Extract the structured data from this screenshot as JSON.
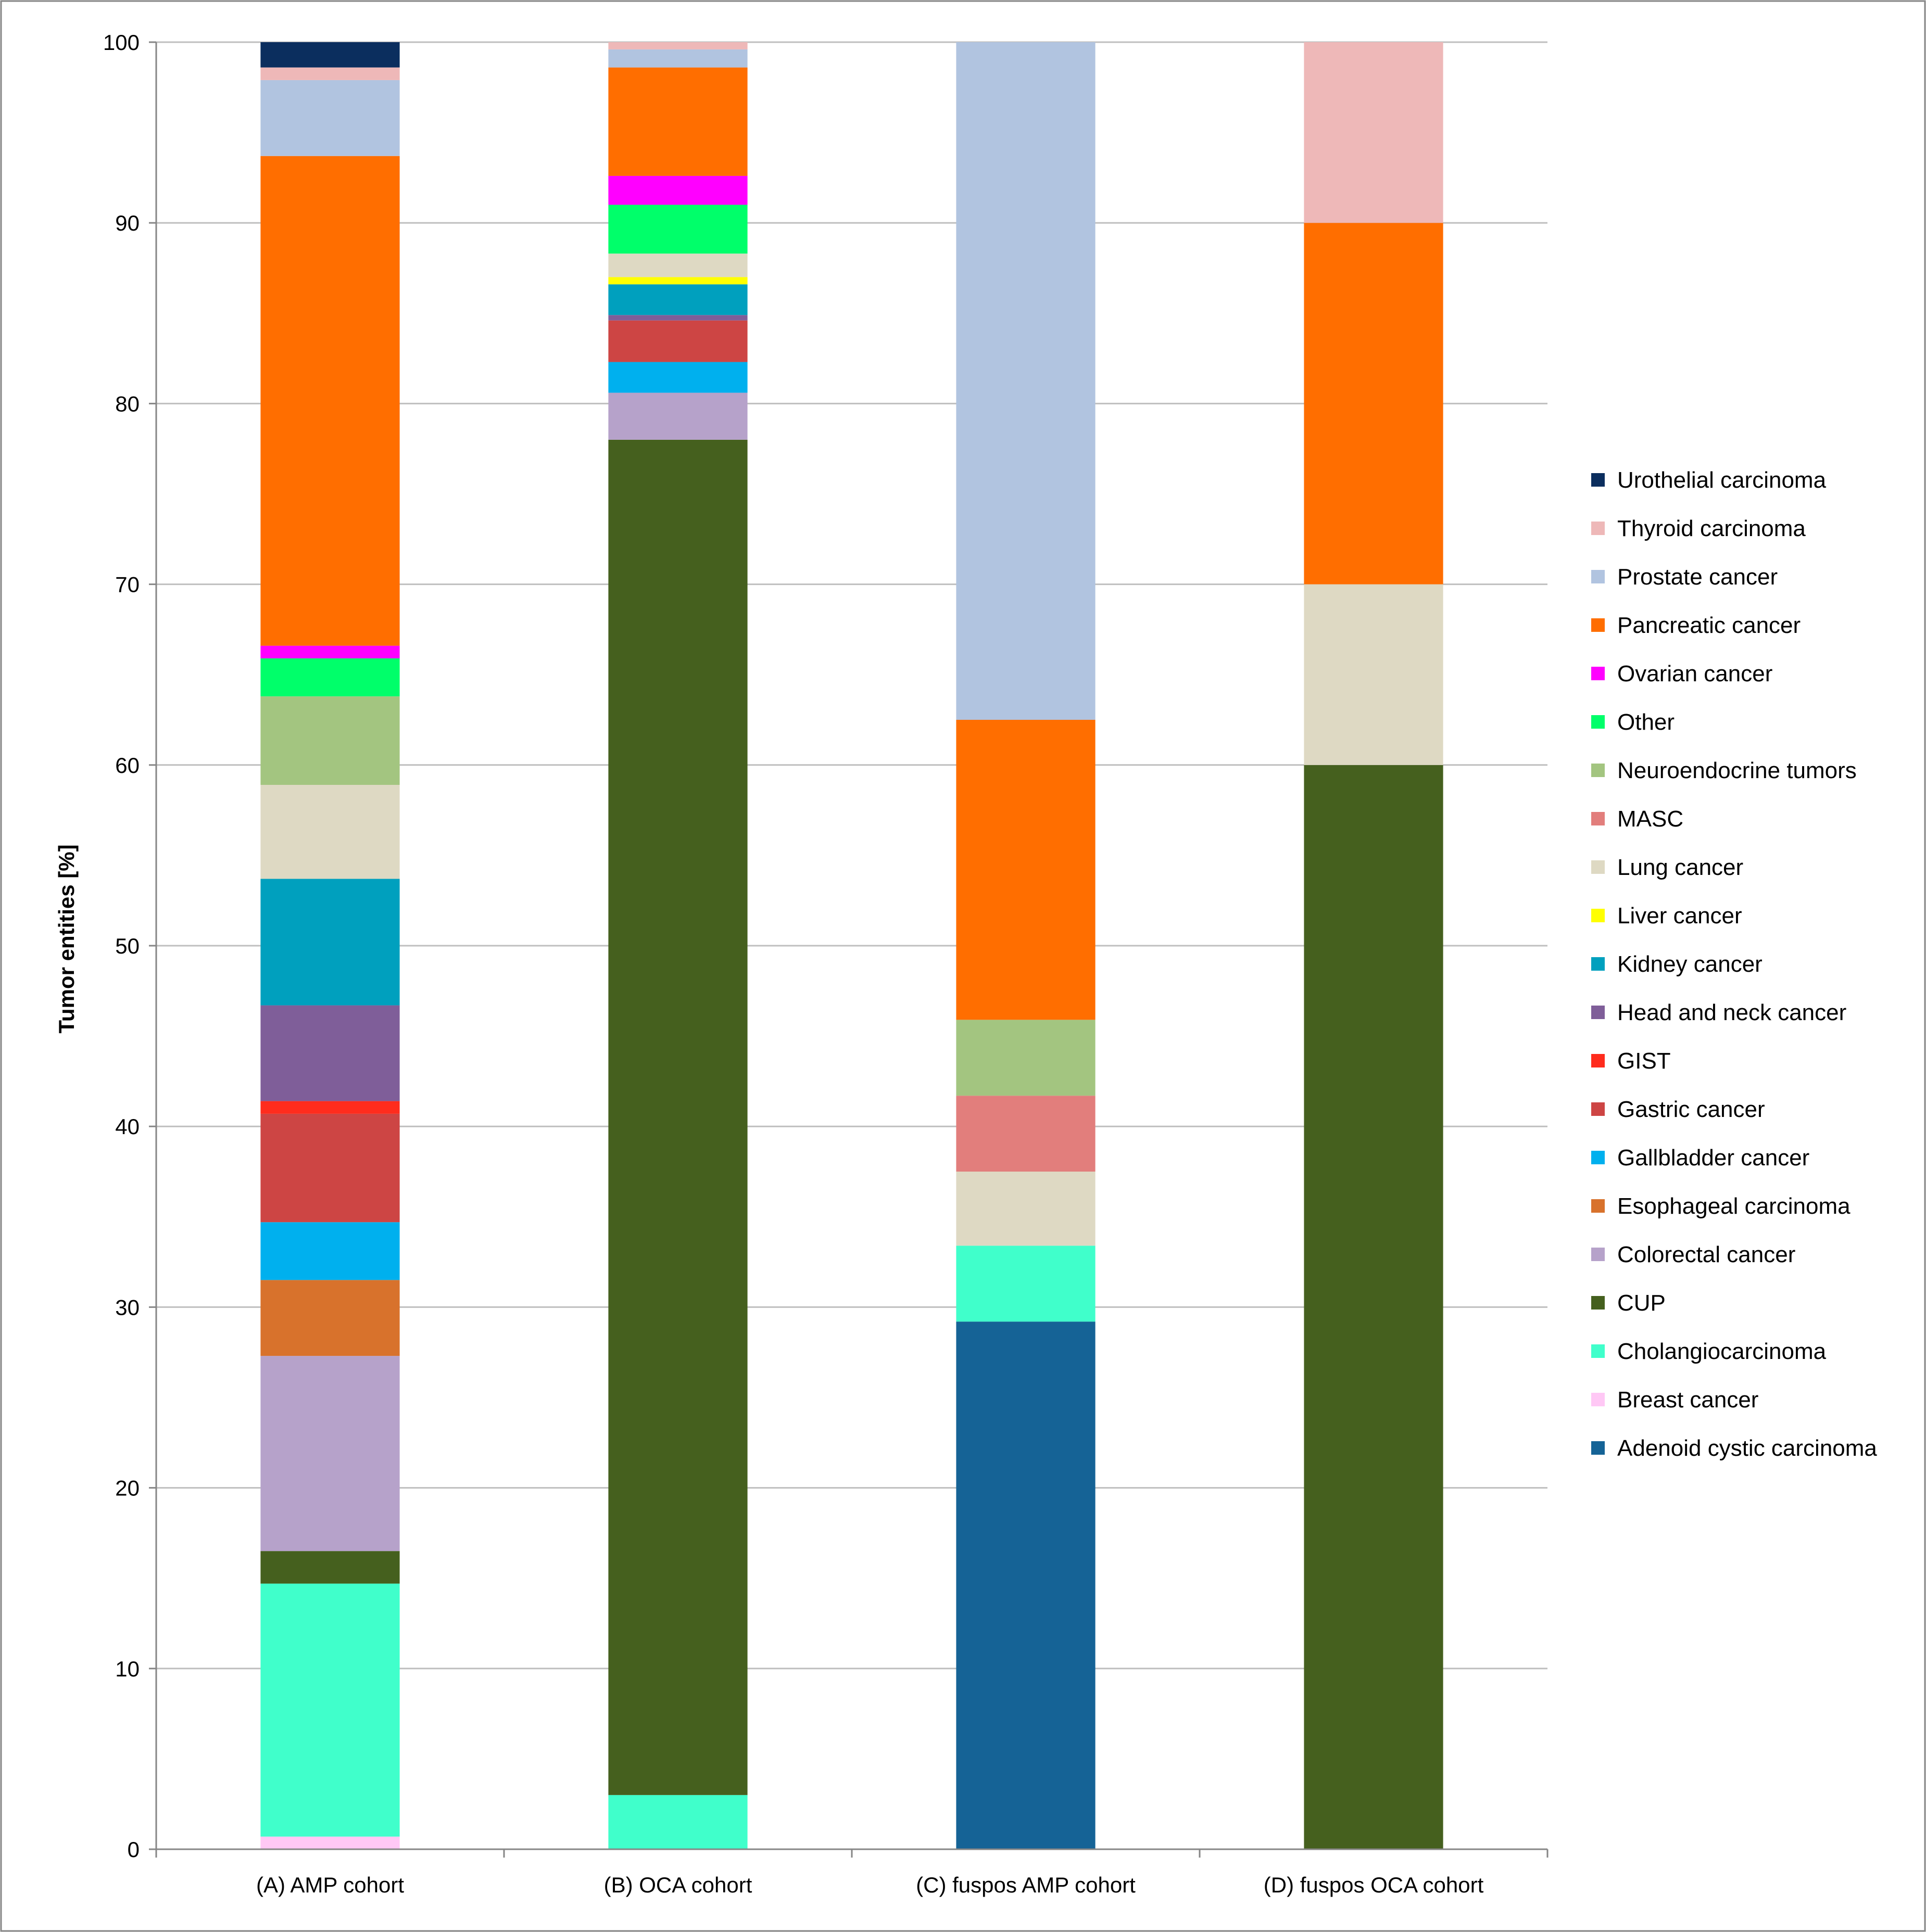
{
  "chart_data": {
    "type": "bar",
    "stacked": true,
    "title": "",
    "xlabel": "",
    "ylabel": "Tumor entities [%]",
    "ylim": [
      0,
      100
    ],
    "yticks": [
      0,
      10,
      20,
      30,
      40,
      50,
      60,
      70,
      80,
      90,
      100
    ],
    "grid": true,
    "legend_position": "right",
    "categories": [
      "(A) AMP cohort",
      "(B) OCA cohort",
      "(C) fuspos AMP cohort",
      "(D) fuspos OCA cohort"
    ],
    "series": [
      {
        "name": "Adenoid cystic carcinoma",
        "color": "#156396",
        "values": [
          0,
          0,
          29.2,
          0
        ]
      },
      {
        "name": "Breast cancer",
        "color": "#FFC8F5",
        "values": [
          0.7,
          0,
          0,
          0
        ]
      },
      {
        "name": "Cholangiocarcinoma",
        "color": "#40FFCB",
        "values": [
          14.0,
          3.0,
          4.2,
          0
        ]
      },
      {
        "name": "CUP",
        "color": "#45601E",
        "values": [
          1.8,
          75.0,
          0,
          60.0
        ]
      },
      {
        "name": "Colorectal cancer",
        "color": "#B6A2CA",
        "values": [
          10.8,
          2.6,
          0,
          0
        ]
      },
      {
        "name": "Esophageal carcinoma",
        "color": "#D8722C",
        "values": [
          4.2,
          0,
          0,
          0
        ]
      },
      {
        "name": "Gallbladder cancer",
        "color": "#00B0EE",
        "values": [
          3.2,
          1.7,
          0,
          0
        ]
      },
      {
        "name": "Gastric cancer",
        "color": "#CD4544",
        "values": [
          6.0,
          2.3,
          0,
          0
        ]
      },
      {
        "name": "GIST",
        "color": "#FF2C1D",
        "values": [
          0.7,
          0,
          0,
          0
        ]
      },
      {
        "name": "Head and neck cancer",
        "color": "#7F5E99",
        "values": [
          5.3,
          0.3,
          0,
          0
        ]
      },
      {
        "name": "Kidney cancer",
        "color": "#00A0BE",
        "values": [
          7.0,
          1.7,
          0,
          0
        ]
      },
      {
        "name": "Liver cancer",
        "color": "#FFFF00",
        "values": [
          0,
          0.4,
          0,
          0
        ]
      },
      {
        "name": "Lung cancer",
        "color": "#DED9C3",
        "values": [
          5.2,
          1.3,
          4.1,
          10.0
        ]
      },
      {
        "name": "MASC",
        "color": "#E27E7C",
        "values": [
          0,
          0,
          4.2,
          0
        ]
      },
      {
        "name": "Neuroendocrine tumors",
        "color": "#A3C580",
        "values": [
          4.9,
          0,
          4.2,
          0
        ]
      },
      {
        "name": "Other",
        "color": "#00FF6A",
        "values": [
          2.1,
          2.7,
          0,
          0
        ]
      },
      {
        "name": "Ovarian cancer",
        "color": "#FF00FF",
        "values": [
          0.7,
          1.6,
          0,
          0
        ]
      },
      {
        "name": "Pancreatic cancer",
        "color": "#FF6E00",
        "values": [
          27.1,
          6.0,
          16.6,
          20.0
        ]
      },
      {
        "name": "Prostate cancer",
        "color": "#B1C4E0",
        "values": [
          4.2,
          1.0,
          37.5,
          0
        ]
      },
      {
        "name": "Thyroid carcinoma",
        "color": "#EEB8B8",
        "values": [
          0.7,
          0.4,
          0,
          10.0
        ]
      },
      {
        "name": "Urothelial carcinoma",
        "color": "#0B2E5E",
        "values": [
          1.4,
          0,
          0,
          0
        ]
      }
    ]
  }
}
